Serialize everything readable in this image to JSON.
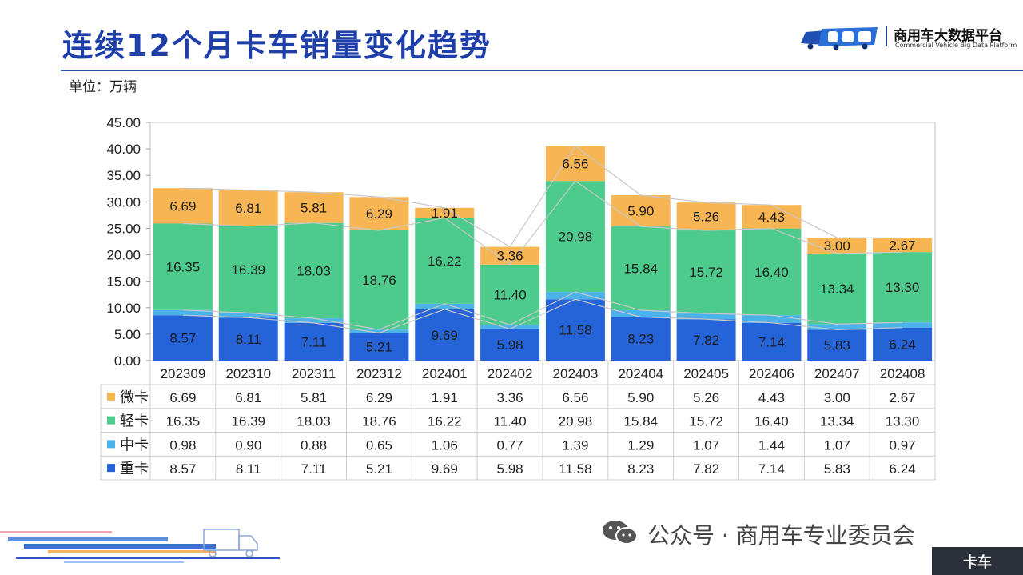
{
  "header": {
    "title": "连续12个月卡车销量变化趋势",
    "unit": "单位：万辆"
  },
  "logo": {
    "brand_cn": "商用车大数据平台",
    "brand_en": "Commercial Vehicle Big Data Platform"
  },
  "footer": {
    "wechat_text": "公众号 · 商用车专业委员会",
    "corner_tag": "卡车"
  },
  "colors": {
    "title": "#1f3fa8",
    "heavy": "#2563d9",
    "medium": "#4cb3ea",
    "light": "#4ccb8c",
    "micro": "#f7b553"
  },
  "chart_data": {
    "type": "bar",
    "stacked": true,
    "title": "连续12个月卡车销量变化趋势",
    "ylabel": "单位：万辆",
    "ylim": [
      0,
      45
    ],
    "yticks": [
      "0.00",
      "5.00",
      "10.00",
      "15.00",
      "20.00",
      "25.00",
      "30.00",
      "35.00",
      "40.00",
      "45.00"
    ],
    "grid": false,
    "categories": [
      "202309",
      "202310",
      "202311",
      "202312",
      "202401",
      "202402",
      "202403",
      "202404",
      "202405",
      "202406",
      "202407",
      "202408"
    ],
    "series": [
      {
        "key": "heavy",
        "name": "重卡",
        "color": "#2563d9",
        "values": [
          8.57,
          8.11,
          7.11,
          5.21,
          9.69,
          5.98,
          11.58,
          8.23,
          7.82,
          7.14,
          5.83,
          6.24
        ],
        "labels": [
          "8.57",
          "8.11",
          "7.11",
          "5.21",
          "9.69",
          "5.98",
          "11.58",
          "8.23",
          "7.82",
          "7.14",
          "5.83",
          "6.24"
        ]
      },
      {
        "key": "medium",
        "name": "中卡",
        "color": "#4cb3ea",
        "values": [
          0.98,
          0.9,
          0.88,
          0.65,
          1.06,
          0.77,
          1.39,
          1.29,
          1.07,
          1.44,
          1.07,
          0.97
        ],
        "labels": [
          "0.98",
          "0.90",
          "0.88",
          "0.65",
          "1.06",
          "0.77",
          "1.39",
          "1.29",
          "1.07",
          "1.44",
          "1.07",
          "0.97"
        ]
      },
      {
        "key": "light",
        "name": "轻卡",
        "color": "#4ccb8c",
        "values": [
          16.35,
          16.39,
          18.03,
          18.76,
          16.22,
          11.4,
          20.98,
          15.84,
          15.72,
          16.4,
          13.34,
          13.3
        ],
        "labels": [
          "16.35",
          "16.39",
          "18.03",
          "18.76",
          "16.22",
          "11.40",
          "20.98",
          "15.84",
          "15.72",
          "16.40",
          "13.34",
          "13.30"
        ]
      },
      {
        "key": "micro",
        "name": "微卡",
        "color": "#f7b553",
        "values": [
          6.69,
          6.81,
          5.81,
          6.29,
          1.91,
          3.36,
          6.56,
          5.9,
          5.26,
          4.43,
          3.0,
          2.67
        ],
        "labels": [
          "6.69",
          "6.81",
          "5.81",
          "6.29",
          "1.91",
          "3.36",
          "6.56",
          "5.90",
          "5.26",
          "4.43",
          "3.00",
          "2.67"
        ]
      }
    ],
    "table_row_order": [
      "micro",
      "light",
      "medium",
      "heavy"
    ],
    "label_series": [
      "heavy",
      "light",
      "micro"
    ]
  }
}
